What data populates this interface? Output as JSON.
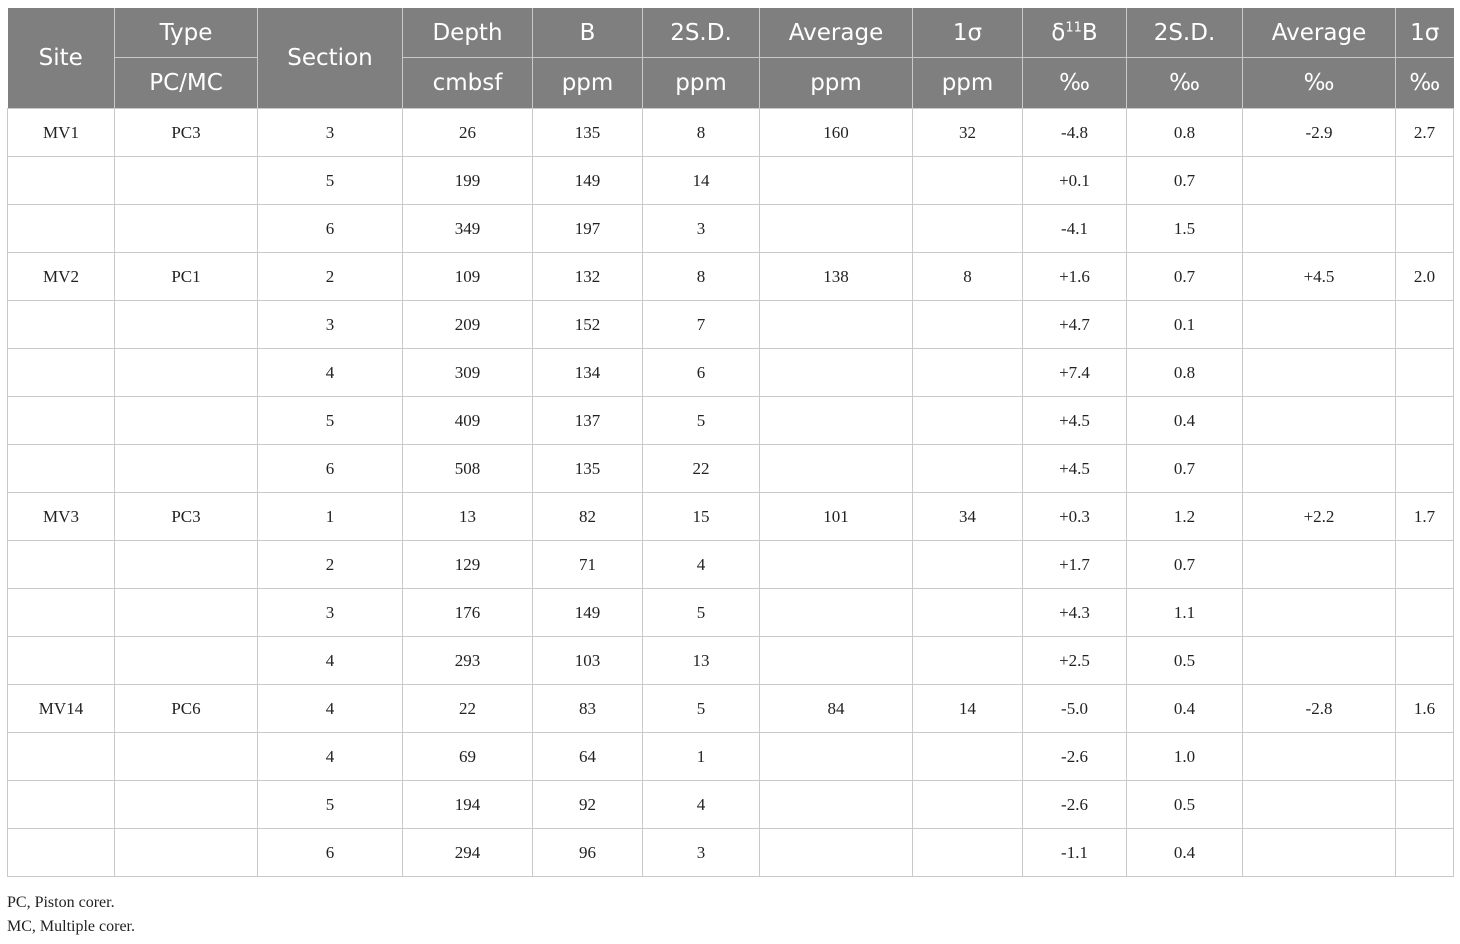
{
  "header": {
    "site": "Site",
    "type_top": "Type",
    "type_bottom": "PC/MC",
    "section": "Section",
    "depth_top": "Depth",
    "depth_bottom": "cmbsf",
    "b_top": "B",
    "b_bottom": "ppm",
    "sd_b_top": "2S.D.",
    "sd_b_bottom": "ppm",
    "avg_b_top": "Average",
    "avg_b_bottom": "ppm",
    "sigma_b_top": "1σ",
    "sigma_b_bottom": "ppm",
    "d11b_prefix": "δ",
    "d11b_sup": "11",
    "d11b_suffix": "B",
    "d11b_bottom": "‰",
    "sd_d_top": "2S.D.",
    "sd_d_bottom": "‰",
    "avg_d_top": "Average",
    "avg_d_bottom": "‰",
    "sigma_d_top": "1σ",
    "sigma_d_bottom": "‰"
  },
  "rows": [
    {
      "site": "MV1",
      "type": "PC3",
      "section": "3",
      "depth": "26",
      "b": "135",
      "sd_b": "8",
      "avg_b": "160",
      "sigma_b": "32",
      "d11b": "-4.8",
      "sd_d": "0.8",
      "avg_d": "-2.9",
      "sigma_d": "2.7"
    },
    {
      "site": "",
      "type": "",
      "section": "5",
      "depth": "199",
      "b": "149",
      "sd_b": "14",
      "avg_b": "",
      "sigma_b": "",
      "d11b": "+0.1",
      "sd_d": "0.7",
      "avg_d": "",
      "sigma_d": ""
    },
    {
      "site": "",
      "type": "",
      "section": "6",
      "depth": "349",
      "b": "197",
      "sd_b": "3",
      "avg_b": "",
      "sigma_b": "",
      "d11b": "-4.1",
      "sd_d": "1.5",
      "avg_d": "",
      "sigma_d": ""
    },
    {
      "site": "MV2",
      "type": "PC1",
      "section": "2",
      "depth": "109",
      "b": "132",
      "sd_b": "8",
      "avg_b": "138",
      "sigma_b": "8",
      "d11b": "+1.6",
      "sd_d": "0.7",
      "avg_d": "+4.5",
      "sigma_d": "2.0"
    },
    {
      "site": "",
      "type": "",
      "section": "3",
      "depth": "209",
      "b": "152",
      "sd_b": "7",
      "avg_b": "",
      "sigma_b": "",
      "d11b": "+4.7",
      "sd_d": "0.1",
      "avg_d": "",
      "sigma_d": ""
    },
    {
      "site": "",
      "type": "",
      "section": "4",
      "depth": "309",
      "b": "134",
      "sd_b": "6",
      "avg_b": "",
      "sigma_b": "",
      "d11b": "+7.4",
      "sd_d": "0.8",
      "avg_d": "",
      "sigma_d": ""
    },
    {
      "site": "",
      "type": "",
      "section": "5",
      "depth": "409",
      "b": "137",
      "sd_b": "5",
      "avg_b": "",
      "sigma_b": "",
      "d11b": "+4.5",
      "sd_d": "0.4",
      "avg_d": "",
      "sigma_d": ""
    },
    {
      "site": "",
      "type": "",
      "section": "6",
      "depth": "508",
      "b": "135",
      "sd_b": "22",
      "avg_b": "",
      "sigma_b": "",
      "d11b": "+4.5",
      "sd_d": "0.7",
      "avg_d": "",
      "sigma_d": ""
    },
    {
      "site": "MV3",
      "type": "PC3",
      "section": "1",
      "depth": "13",
      "b": "82",
      "sd_b": "15",
      "avg_b": "101",
      "sigma_b": "34",
      "d11b": "+0.3",
      "sd_d": "1.2",
      "avg_d": "+2.2",
      "sigma_d": "1.7"
    },
    {
      "site": "",
      "type": "",
      "section": "2",
      "depth": "129",
      "b": "71",
      "sd_b": "4",
      "avg_b": "",
      "sigma_b": "",
      "d11b": "+1.7",
      "sd_d": "0.7",
      "avg_d": "",
      "sigma_d": ""
    },
    {
      "site": "",
      "type": "",
      "section": "3",
      "depth": "176",
      "b": "149",
      "sd_b": "5",
      "avg_b": "",
      "sigma_b": "",
      "d11b": "+4.3",
      "sd_d": "1.1",
      "avg_d": "",
      "sigma_d": ""
    },
    {
      "site": "",
      "type": "",
      "section": "4",
      "depth": "293",
      "b": "103",
      "sd_b": "13",
      "avg_b": "",
      "sigma_b": "",
      "d11b": "+2.5",
      "sd_d": "0.5",
      "avg_d": "",
      "sigma_d": ""
    },
    {
      "site": "MV14",
      "type": "PC6",
      "section": "4",
      "depth": "22",
      "b": "83",
      "sd_b": "5",
      "avg_b": "84",
      "sigma_b": "14",
      "d11b": "-5.0",
      "sd_d": "0.4",
      "avg_d": "-2.8",
      "sigma_d": "1.6"
    },
    {
      "site": "",
      "type": "",
      "section": "4",
      "depth": "69",
      "b": "64",
      "sd_b": "1",
      "avg_b": "",
      "sigma_b": "",
      "d11b": "-2.6",
      "sd_d": "1.0",
      "avg_d": "",
      "sigma_d": ""
    },
    {
      "site": "",
      "type": "",
      "section": "5",
      "depth": "194",
      "b": "92",
      "sd_b": "4",
      "avg_b": "",
      "sigma_b": "",
      "d11b": "-2.6",
      "sd_d": "0.5",
      "avg_d": "",
      "sigma_d": ""
    },
    {
      "site": "",
      "type": "",
      "section": "6",
      "depth": "294",
      "b": "96",
      "sd_b": "3",
      "avg_b": "",
      "sigma_b": "",
      "d11b": "-1.1",
      "sd_d": "0.4",
      "avg_d": "",
      "sigma_d": ""
    }
  ],
  "footnotes": {
    "pc": "PC, Piston corer.",
    "mc": "MC, Multiple corer."
  }
}
